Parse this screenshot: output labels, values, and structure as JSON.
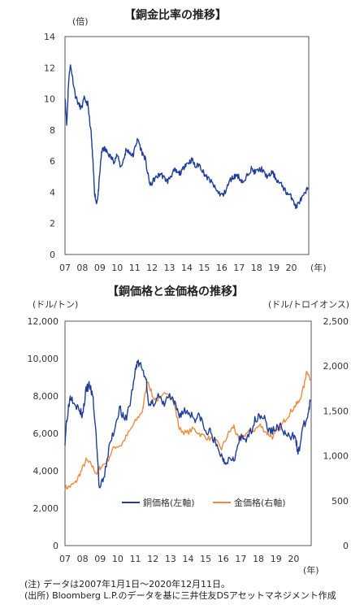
{
  "chart_data": [
    {
      "type": "line",
      "title": "【銅金比率の推移】",
      "ylabel": "(倍)",
      "xlabel": "(年)",
      "categories": [
        "07",
        "08",
        "09",
        "10",
        "11",
        "12",
        "13",
        "14",
        "15",
        "16",
        "17",
        "18",
        "19",
        "20"
      ],
      "ylim": [
        0,
        14
      ],
      "yticks": [
        0,
        2,
        4,
        6,
        8,
        10,
        12,
        14
      ],
      "grid": false,
      "series": [
        {
          "color": "#1f3d99",
          "x": [
            2007.0,
            2007.1,
            2007.2,
            2007.3,
            2007.4,
            2007.6,
            2007.8,
            2007.95,
            2008.1,
            2008.3,
            2008.5,
            2008.6,
            2008.7,
            2008.8,
            2008.9,
            2009.0,
            2009.1,
            2009.25,
            2009.4,
            2009.6,
            2009.8,
            2010.0,
            2010.2,
            2010.4,
            2010.5,
            2010.7,
            2010.9,
            2011.1,
            2011.2,
            2011.4,
            2011.6,
            2011.75,
            2011.9,
            2012.1,
            2012.3,
            2012.5,
            2012.7,
            2012.9,
            2013.1,
            2013.3,
            2013.5,
            2013.7,
            2013.9,
            2014.1,
            2014.3,
            2014.5,
            2014.7,
            2014.9,
            2015.1,
            2015.3,
            2015.5,
            2015.7,
            2015.9,
            2016.1,
            2016.3,
            2016.5,
            2016.7,
            2016.9,
            2017.1,
            2017.3,
            2017.5,
            2017.7,
            2017.9,
            2018.1,
            2018.3,
            2018.5,
            2018.7,
            2018.9,
            2019.1,
            2019.3,
            2019.5,
            2019.7,
            2019.9,
            2020.1,
            2020.25,
            2020.4,
            2020.6,
            2020.8,
            2020.95
          ],
          "values": [
            10.2,
            8.3,
            11.0,
            12.2,
            11.6,
            10.2,
            9.6,
            9.4,
            10.0,
            9.7,
            7.8,
            6.0,
            4.0,
            3.3,
            3.8,
            5.2,
            6.6,
            6.8,
            6.6,
            6.3,
            6.0,
            6.4,
            5.6,
            6.2,
            6.7,
            6.6,
            6.3,
            7.2,
            7.4,
            6.6,
            6.2,
            5.2,
            4.4,
            4.8,
            5.0,
            5.2,
            4.9,
            4.7,
            5.1,
            5.4,
            5.2,
            5.3,
            5.8,
            5.9,
            6.1,
            5.6,
            5.8,
            5.4,
            5.0,
            4.8,
            4.5,
            4.1,
            3.9,
            3.8,
            4.3,
            4.8,
            5.0,
            5.1,
            4.8,
            4.6,
            5.2,
            5.5,
            5.3,
            5.4,
            5.5,
            5.1,
            5.0,
            5.3,
            4.9,
            4.6,
            4.4,
            4.0,
            3.8,
            3.6,
            3.0,
            3.3,
            3.6,
            3.9,
            4.3
          ]
        }
      ]
    },
    {
      "type": "line",
      "title": "【銅価格と金価格の推移】",
      "ylabel_left": "(ドル/トン)",
      "ylabel_right": "(ドル/トロイオンス)",
      "xlabel": "(年)",
      "categories": [
        "07",
        "08",
        "09",
        "10",
        "11",
        "12",
        "13",
        "14",
        "15",
        "16",
        "17",
        "18",
        "19",
        "20"
      ],
      "ylim_left": [
        0,
        12000
      ],
      "yticks_left": [
        "0",
        "2,000",
        "4,000",
        "6,000",
        "8,000",
        "10,000",
        "12,000"
      ],
      "ylim_right": [
        0,
        2500
      ],
      "yticks_right": [
        "0",
        "500",
        "1,000",
        "1,500",
        "2,000",
        "2,500"
      ],
      "legend_position": "bottom-center",
      "grid": false,
      "series": [
        {
          "name": "銅価格(左軸)",
          "color": "#1f3d99",
          "axis": "left",
          "x": [
            2007.0,
            2007.1,
            2007.3,
            2007.5,
            2007.8,
            2008.0,
            2008.2,
            2008.4,
            2008.6,
            2008.8,
            2008.95,
            2009.2,
            2009.5,
            2009.8,
            2010.1,
            2010.4,
            2010.7,
            2011.0,
            2011.1,
            2011.3,
            2011.6,
            2011.8,
            2012.0,
            2012.3,
            2012.6,
            2012.9,
            2013.2,
            2013.5,
            2013.8,
            2014.1,
            2014.4,
            2014.7,
            2015.0,
            2015.3,
            2015.6,
            2015.9,
            2016.1,
            2016.4,
            2016.7,
            2016.9,
            2017.1,
            2017.4,
            2017.7,
            2018.0,
            2018.3,
            2018.6,
            2018.9,
            2019.2,
            2019.5,
            2019.8,
            2020.1,
            2020.25,
            2020.5,
            2020.8,
            2020.95
          ],
          "values": [
            5600,
            6800,
            8000,
            7800,
            7200,
            7000,
            8300,
            8600,
            7800,
            5500,
            3000,
            3500,
            5200,
            6200,
            7400,
            6600,
            7600,
            9300,
            9800,
            9600,
            9000,
            7400,
            7600,
            8000,
            7500,
            8000,
            7600,
            7000,
            7200,
            7100,
            6800,
            6900,
            6000,
            6100,
            5300,
            4800,
            4500,
            4700,
            4800,
            5600,
            5800,
            5700,
            6500,
            7000,
            6900,
            6100,
            6200,
            6400,
            6000,
            5700,
            6000,
            4800,
            6200,
            6900,
            7700
          ]
        },
        {
          "name": "金価格(右軸)",
          "color": "#f08a3c",
          "axis": "right",
          "x": [
            2007.0,
            2007.3,
            2007.6,
            2007.9,
            2008.2,
            2008.5,
            2008.8,
            2009.0,
            2009.4,
            2009.8,
            2010.2,
            2010.6,
            2011.0,
            2011.4,
            2011.7,
            2012.0,
            2012.4,
            2012.8,
            2013.2,
            2013.5,
            2013.9,
            2014.3,
            2014.7,
            2015.1,
            2015.5,
            2015.9,
            2016.3,
            2016.6,
            2016.9,
            2017.3,
            2017.7,
            2018.1,
            2018.5,
            2018.8,
            2019.2,
            2019.5,
            2019.8,
            2020.1,
            2020.3,
            2020.6,
            2020.75,
            2020.95
          ],
          "values": [
            640,
            660,
            700,
            820,
            950,
            900,
            800,
            870,
            940,
            1100,
            1120,
            1250,
            1380,
            1500,
            1850,
            1650,
            1620,
            1720,
            1600,
            1300,
            1250,
            1300,
            1240,
            1200,
            1180,
            1080,
            1250,
            1330,
            1160,
            1250,
            1280,
            1340,
            1250,
            1210,
            1300,
            1400,
            1480,
            1560,
            1600,
            1780,
            1960,
            1840
          ]
        }
      ]
    }
  ],
  "notes": [
    "(注) データは2007年1月1日〜2020年12月11日。",
    "(出所) Bloomberg L.P.のデータを基に三井住友DSアセットマネジメント作成"
  ]
}
